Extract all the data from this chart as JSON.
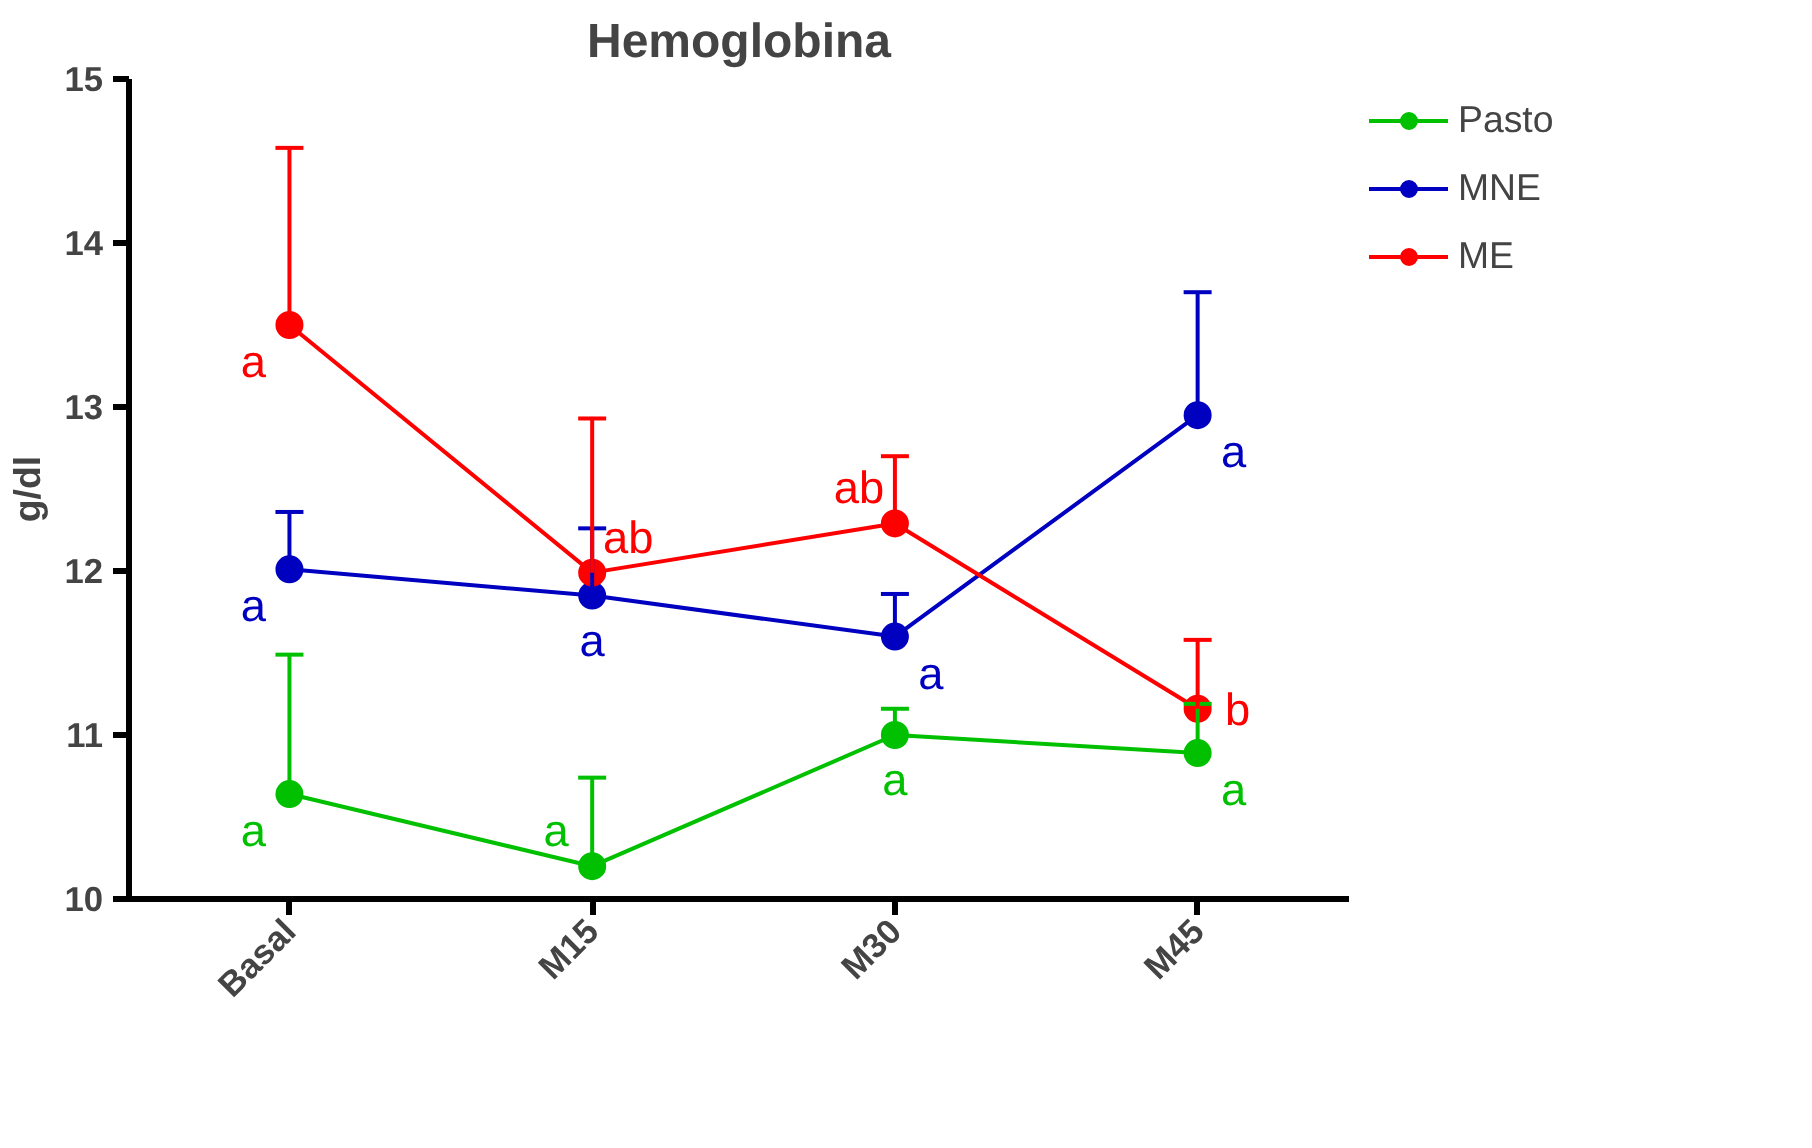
{
  "chart_data": {
    "type": "line",
    "title": "Hemoglobina",
    "ylabel": "g/dl",
    "categories": [
      "Basal",
      "M15",
      "M30",
      "M45"
    ],
    "ylim": [
      10,
      15
    ],
    "yticks": [
      10,
      11,
      12,
      13,
      14,
      15
    ],
    "grid": false,
    "legend": "top right",
    "marker": "circle",
    "line_style": "solid",
    "series": [
      {
        "name": "Pasto",
        "color": "#00c000",
        "values": [
          10.64,
          10.2,
          11.0,
          10.89
        ],
        "errors": [
          [
            10.64,
            11.49
          ],
          [
            10.2,
            10.74
          ],
          [
            11.0,
            11.16
          ],
          [
            10.89,
            11.19
          ]
        ],
        "value_labels": [
          "a",
          "a",
          "a",
          "a"
        ]
      },
      {
        "name": "MNE",
        "color": "#0000c0",
        "values": [
          12.01,
          11.85,
          11.6,
          12.95
        ],
        "errors": [
          [
            12.01,
            12.36
          ],
          [
            11.85,
            12.26
          ],
          [
            11.6,
            11.86
          ],
          [
            12.95,
            13.7
          ]
        ],
        "value_labels": [
          "a",
          "a",
          "a",
          "a"
        ]
      },
      {
        "name": "ME",
        "color": "#ff0000",
        "values": [
          13.5,
          11.99,
          12.29,
          11.16
        ],
        "errors": [
          [
            13.5,
            14.58
          ],
          [
            11.99,
            12.93
          ],
          [
            12.29,
            12.7
          ],
          [
            11.16,
            11.58
          ]
        ],
        "value_labels": [
          "a",
          "ab",
          "ab",
          "b"
        ]
      }
    ]
  }
}
